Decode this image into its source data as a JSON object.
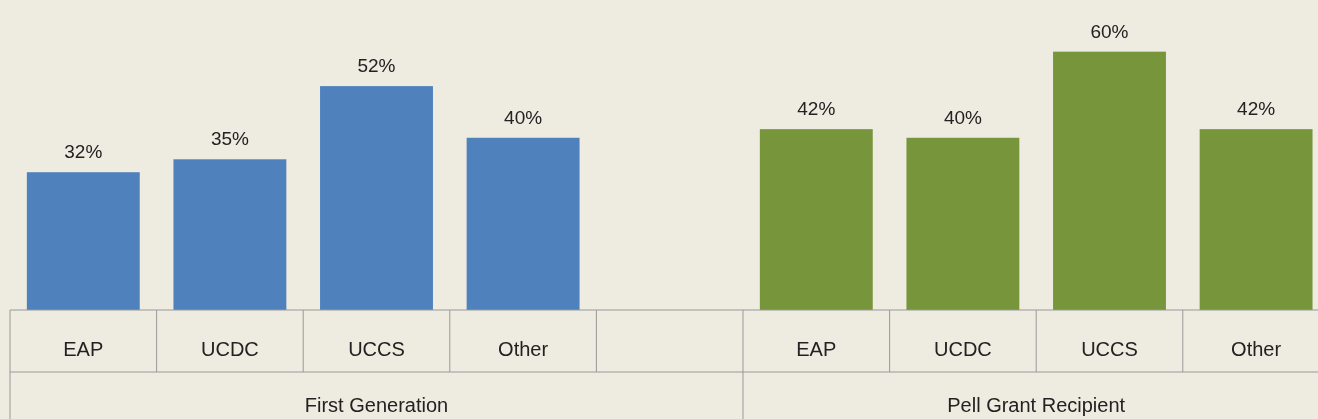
{
  "chart_data": {
    "type": "bar",
    "categories": [
      "EAP",
      "UCDC",
      "UCCS",
      "Other",
      null,
      "EAP",
      "UCDC",
      "UCCS",
      "Other"
    ],
    "series": [
      {
        "color": "#4f81bd",
        "values": [
          32,
          35,
          52,
          40,
          null,
          null,
          null,
          null,
          null
        ],
        "value_labels": [
          "32%",
          "35%",
          "52%",
          "40%",
          null,
          null,
          null,
          null,
          null
        ]
      },
      {
        "color": "#77963b",
        "values": [
          null,
          null,
          null,
          null,
          null,
          42,
          40,
          60,
          42
        ],
        "value_labels": [
          null,
          null,
          null,
          null,
          null,
          "42%",
          "40%",
          "60%",
          "42%"
        ]
      }
    ],
    "ylim": [
      0,
      72
    ],
    "annotations": [
      "First Generation",
      "Pell Grant Recipient"
    ]
  }
}
